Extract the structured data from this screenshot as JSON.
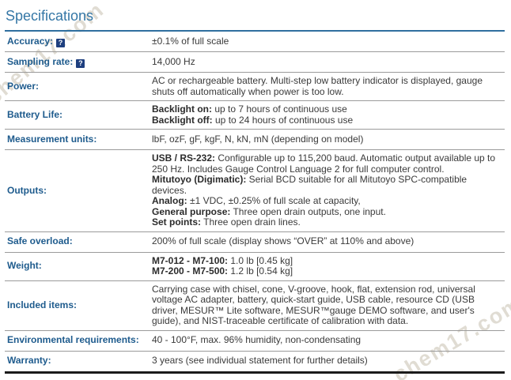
{
  "page": {
    "title": "Specifications",
    "watermark_text": "chem17.com"
  },
  "icons": {
    "help_glyph": "?"
  },
  "colors": {
    "title_blue": "#3577a6",
    "header_rule_blue": "#2f6f9f",
    "label_blue": "#1e5b8d",
    "body_text": "#3a3a3a",
    "row_separator": "#9b9b9b",
    "table_bottom_border": "#1b1b1b",
    "help_icon_bg": "#1e3f7f",
    "watermark": "rgba(186,178,158,0.45)"
  },
  "table": {
    "rows": [
      {
        "label": "Accuracy:",
        "help": true,
        "lines": [
          [
            {
              "t": "±0.1% of full scale",
              "b": false
            }
          ]
        ]
      },
      {
        "label": "Sampling rate:",
        "help": true,
        "lines": [
          [
            {
              "t": "14,000 Hz",
              "b": false
            }
          ]
        ]
      },
      {
        "label": "Power:",
        "help": false,
        "lines": [
          [
            {
              "t": "AC or rechargeable battery. Multi-step low battery indicator is displayed, gauge",
              "b": false
            }
          ],
          [
            {
              "t": "shuts off automatically when power is too low.",
              "b": false
            }
          ]
        ]
      },
      {
        "label": "Battery Life:",
        "help": false,
        "lines": [
          [
            {
              "t": "Backlight on:",
              "b": true
            },
            {
              "t": " up to 7 hours of continuous use",
              "b": false
            }
          ],
          [
            {
              "t": "Backlight off:",
              "b": true
            },
            {
              "t": " up to 24 hours of continuous use",
              "b": false
            }
          ]
        ]
      },
      {
        "label": "Measurement units:",
        "help": false,
        "lines": [
          [
            {
              "t": "lbF, ozF, gF, kgF, N, kN, mN (depending on model)",
              "b": false
            }
          ]
        ]
      },
      {
        "label": "Outputs:",
        "help": false,
        "lines": [
          [
            {
              "t": "USB / RS-232:",
              "b": true
            },
            {
              "t": " Configurable up to 115,200 baud. Automatic output available up to",
              "b": false
            }
          ],
          [
            {
              "t": "250 Hz. Includes Gauge Control Language 2 for full computer control.",
              "b": false
            }
          ],
          [
            {
              "t": "Mitutoyo (Digimatic):",
              "b": true
            },
            {
              "t": " Serial BCD suitable for all Mitutoyo SPC-compatible",
              "b": false
            }
          ],
          [
            {
              "t": "devices.",
              "b": false
            }
          ],
          [
            {
              "t": "Analog:",
              "b": true
            },
            {
              "t": " ±1 VDC, ±0.25% of full scale at capacity,",
              "b": false
            }
          ],
          [
            {
              "t": "General purpose:",
              "b": true
            },
            {
              "t": " Three open drain outputs, one input.",
              "b": false
            }
          ],
          [
            {
              "t": "Set points:",
              "b": true
            },
            {
              "t": " Three open drain lines.",
              "b": false
            }
          ]
        ]
      },
      {
        "label": "Safe overload:",
        "help": false,
        "lines": [
          [
            {
              "t": "200% of full scale (display shows “OVER” at 110% and above)",
              "b": false
            }
          ]
        ]
      },
      {
        "label": "Weight:",
        "help": false,
        "lines": [
          [
            {
              "t": "M7-012 - M7-100:",
              "b": true
            },
            {
              "t": " 1.0 lb [0.45 kg]",
              "b": false
            }
          ],
          [
            {
              "t": "M7-200 - M7-500:",
              "b": true
            },
            {
              "t": " 1.2 lb [0.54 kg]",
              "b": false
            }
          ]
        ]
      },
      {
        "label": "Included items:",
        "help": false,
        "lines": [
          [
            {
              "t": "Carrying case with chisel, cone, V-groove, hook, flat, extension rod, universal",
              "b": false
            }
          ],
          [
            {
              "t": "voltage AC adapter, battery, quick-start guide, USB cable, resource CD (USB",
              "b": false
            }
          ],
          [
            {
              "t": "driver, MESUR™ Lite software, MESUR™gauge DEMO software, and user's",
              "b": false
            }
          ],
          [
            {
              "t": "guide), and NIST-traceable certificate of calibration with data.",
              "b": false
            }
          ]
        ]
      },
      {
        "label": "Environmental requirements:",
        "help": false,
        "lines": [
          [
            {
              "t": "40 - 100°F, max. 96% humidity, non-condensating",
              "b": false
            }
          ]
        ]
      },
      {
        "label": "Warranty:",
        "help": false,
        "lines": [
          [
            {
              "t": "3 years (see individual statement for further details)",
              "b": false
            }
          ]
        ]
      }
    ]
  }
}
